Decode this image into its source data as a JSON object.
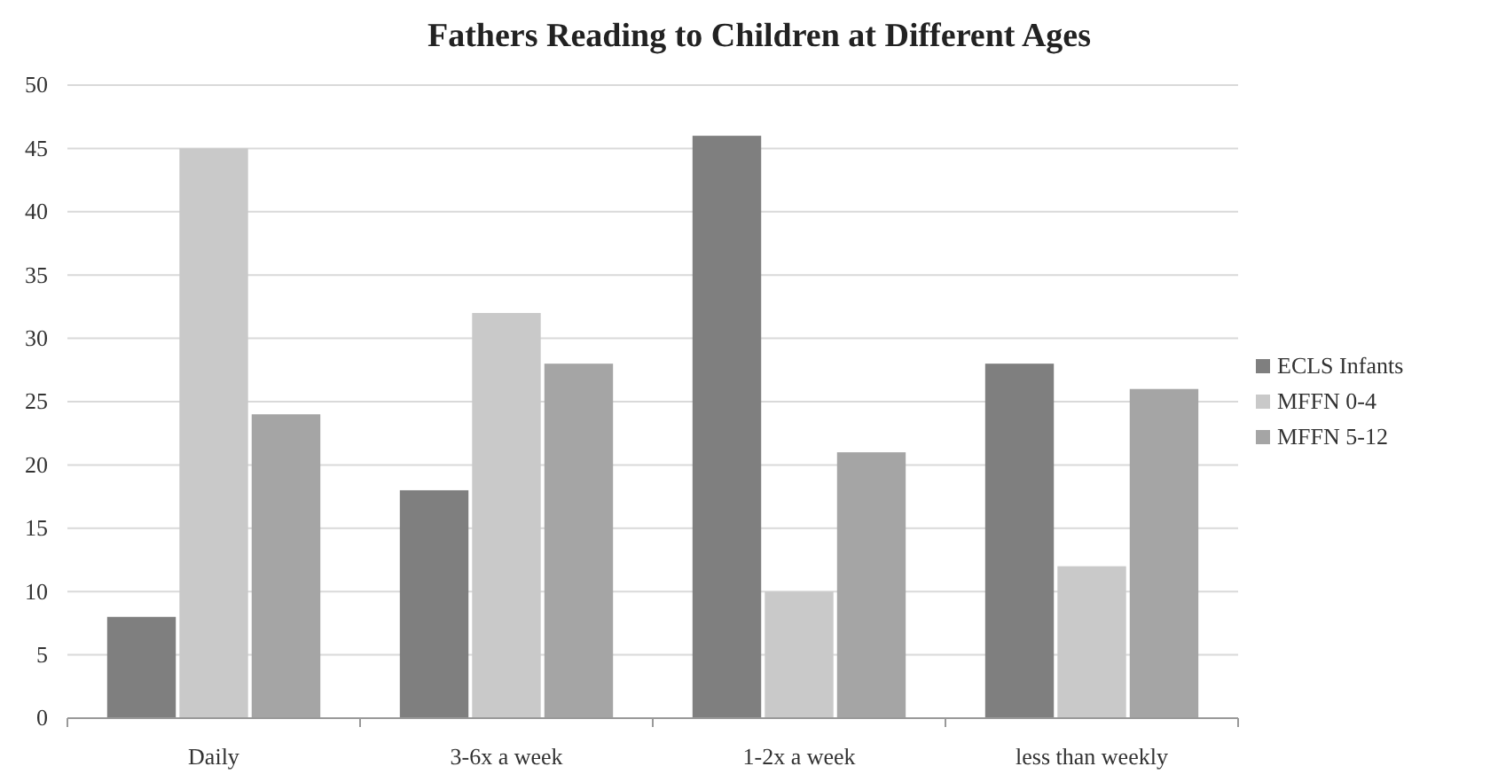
{
  "chart_data": {
    "type": "bar",
    "title": "Fathers Reading to Children at Different Ages",
    "categories": [
      "Daily",
      "3-6x a week",
      "1-2x a week",
      "less than weekly"
    ],
    "series": [
      {
        "name": "ECLS Infants",
        "color": "#7f7f7f",
        "values": [
          8,
          18,
          46,
          28
        ]
      },
      {
        "name": "MFFN 0-4",
        "color": "#c9c9c9",
        "values": [
          45,
          32,
          10,
          12
        ]
      },
      {
        "name": "MFFN 5-12",
        "color": "#a5a5a5",
        "values": [
          24,
          28,
          21,
          26
        ]
      }
    ],
    "ylim": [
      0,
      50
    ],
    "yticks": [
      0,
      5,
      10,
      15,
      20,
      25,
      30,
      35,
      40,
      45,
      50
    ],
    "grid": "y",
    "legend": "right"
  }
}
